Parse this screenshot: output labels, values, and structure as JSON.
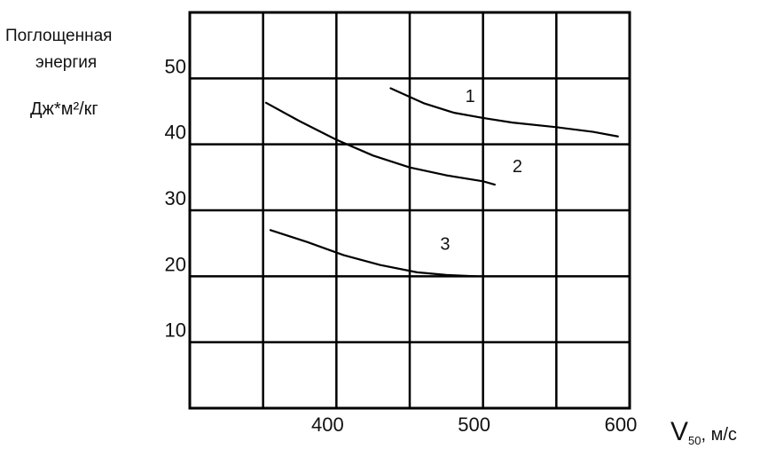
{
  "chart_data": {
    "type": "line",
    "ylabel_lines": [
      "Поглощенная",
      "энергия",
      "Дж*м²/кг"
    ],
    "xlabel": {
      "symbol": "V",
      "subscript": "50",
      "unit": ", м/с"
    },
    "xlim": [
      300,
      600
    ],
    "ylim": [
      0,
      60
    ],
    "x_ticks": [
      400,
      500,
      600
    ],
    "y_ticks": [
      10,
      20,
      30,
      40,
      50
    ],
    "grid": true,
    "series": [
      {
        "name": "1",
        "x": [
          437,
          460,
          480,
          500,
          520,
          550,
          575,
          592
        ],
        "y": [
          48.5,
          46.2,
          44.8,
          44.0,
          43.3,
          42.6,
          41.9,
          41.2
        ]
      },
      {
        "name": "2",
        "x": [
          352,
          375,
          400,
          425,
          450,
          475,
          500,
          508
        ],
        "y": [
          46.3,
          43.5,
          40.7,
          38.3,
          36.5,
          35.3,
          34.4,
          33.9
        ]
      },
      {
        "name": "3",
        "x": [
          355,
          380,
          405,
          430,
          455,
          475,
          495
        ],
        "y": [
          27.0,
          25.2,
          23.2,
          21.7,
          20.6,
          20.2,
          20.0
        ]
      }
    ]
  }
}
